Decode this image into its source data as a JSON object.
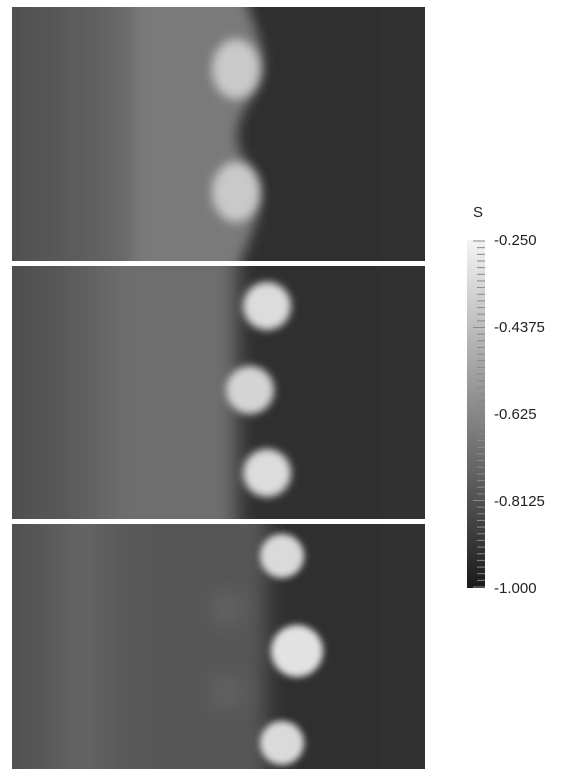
{
  "figure": {
    "panels": [
      {
        "id": "panel-1"
      },
      {
        "id": "panel-2"
      },
      {
        "id": "panel-3"
      }
    ],
    "colorbar": {
      "variable": "S",
      "min": -1.0,
      "max": -0.25,
      "tick_labels": [
        "-0.250",
        "-0.4375",
        "-0.625",
        "-0.8125",
        "-1.000"
      ],
      "colormap": [
        "#1a1a1a",
        "#f4f4f4"
      ]
    }
  }
}
